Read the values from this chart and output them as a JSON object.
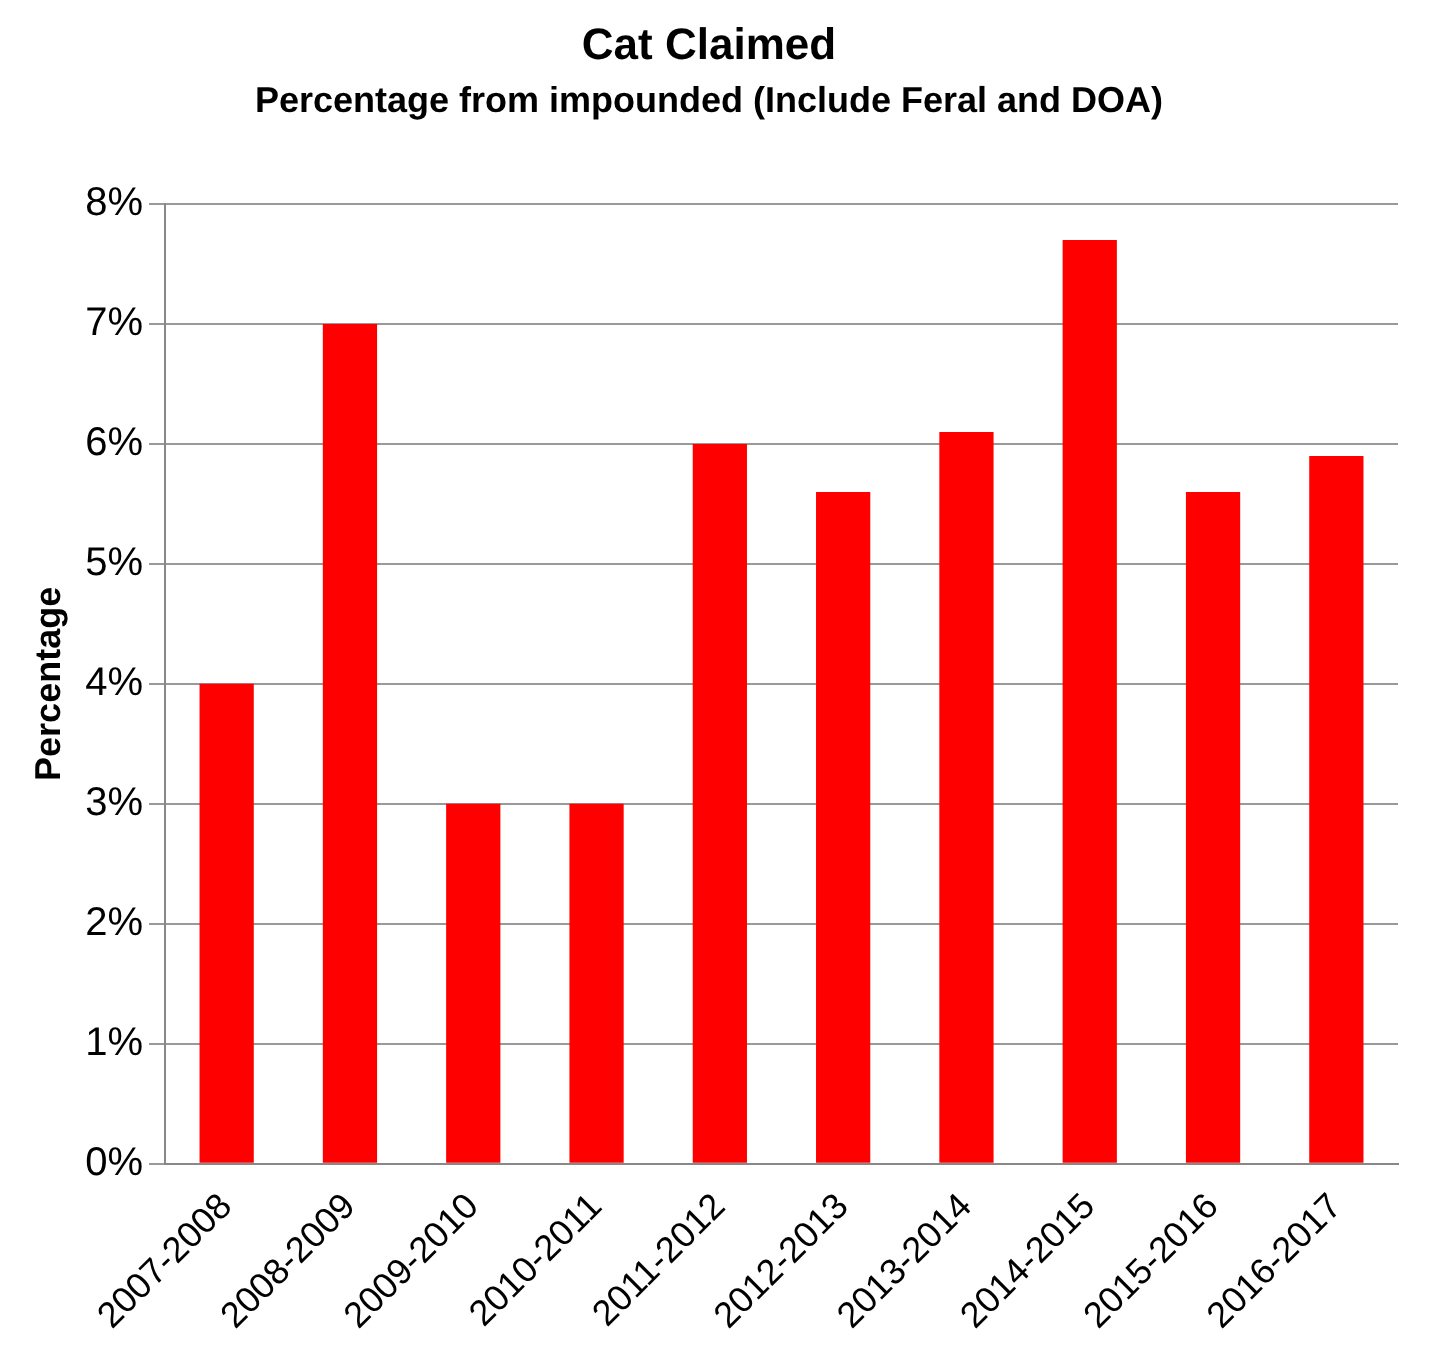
{
  "chart_data": {
    "type": "bar",
    "title": "Cat Claimed",
    "subtitle": "Percentage from impounded (Include Feral and DOA)",
    "ylabel": "Percentage",
    "categories": [
      "2007-2008",
      "2008-2009",
      "2009-2010",
      "2010-2011",
      "2011-2012",
      "2012-2013",
      "2013-2014",
      "2014-2015",
      "2015-2016",
      "2016-2017"
    ],
    "values": [
      4,
      7,
      3,
      3,
      6,
      5.6,
      6.1,
      7.7,
      5.6,
      5.9
    ],
    "color": "#ff0000",
    "ylim": [
      0,
      8
    ],
    "yticks": [
      {
        "value": 0,
        "label": "0%"
      },
      {
        "value": 1,
        "label": "1%"
      },
      {
        "value": 2,
        "label": "2%"
      },
      {
        "value": 3,
        "label": "3%"
      },
      {
        "value": 4,
        "label": "4%"
      },
      {
        "value": 5,
        "label": "5%"
      },
      {
        "value": 6,
        "label": "6%"
      },
      {
        "value": 7,
        "label": "7%"
      },
      {
        "value": 8,
        "label": "8%"
      }
    ],
    "grid": "y"
  }
}
